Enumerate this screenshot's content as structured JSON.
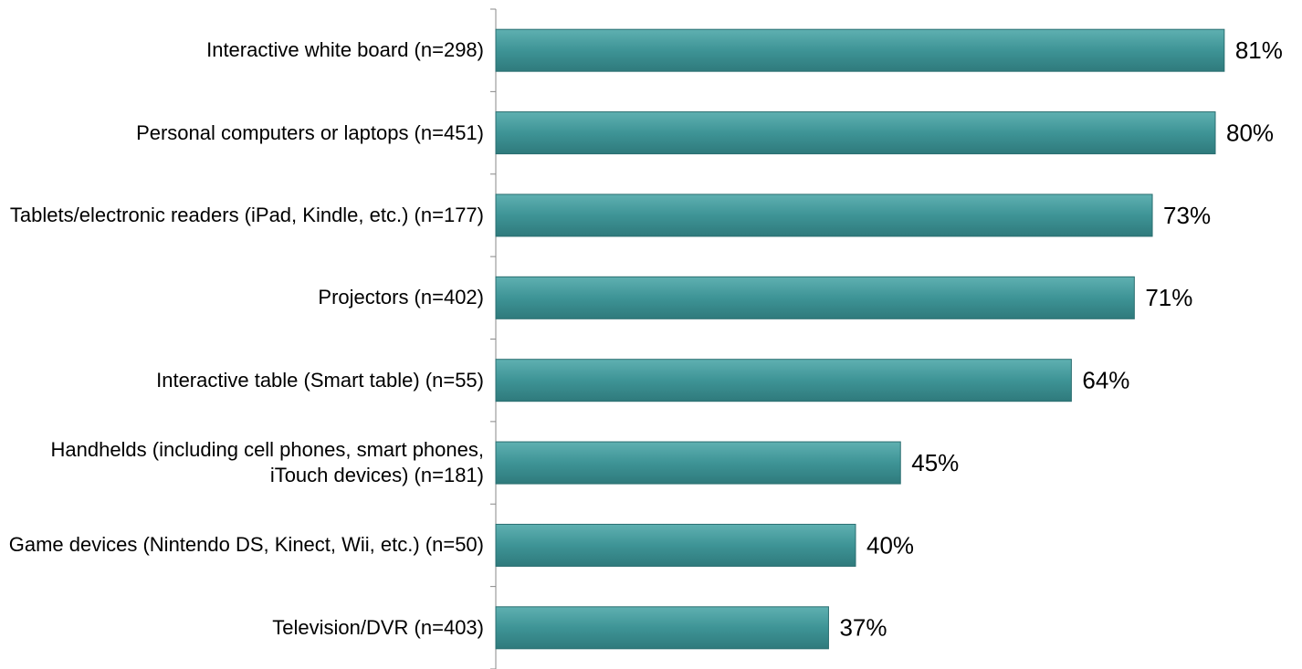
{
  "chart_data": {
    "type": "bar",
    "orientation": "horizontal",
    "categories": [
      "Interactive white board (n=298)",
      "Personal computers or laptops (n=451)",
      "Tablets/electronic readers (iPad, Kindle, etc.) (n=177)",
      "Projectors (n=402)",
      "Interactive table (Smart table) (n=55)",
      "Handhelds (including cell phones, smart phones, iTouch devices) (n=181)",
      "Game devices (Nintendo DS, Kinect, Wii, etc.) (n=50)",
      "Television/DVR (n=403)"
    ],
    "values": [
      81,
      80,
      73,
      71,
      64,
      45,
      40,
      37
    ],
    "value_labels": [
      "81%",
      "80%",
      "73%",
      "71%",
      "64%",
      "45%",
      "40%",
      "37%"
    ],
    "color": "#3e9496",
    "xlim": [
      0,
      100
    ]
  }
}
